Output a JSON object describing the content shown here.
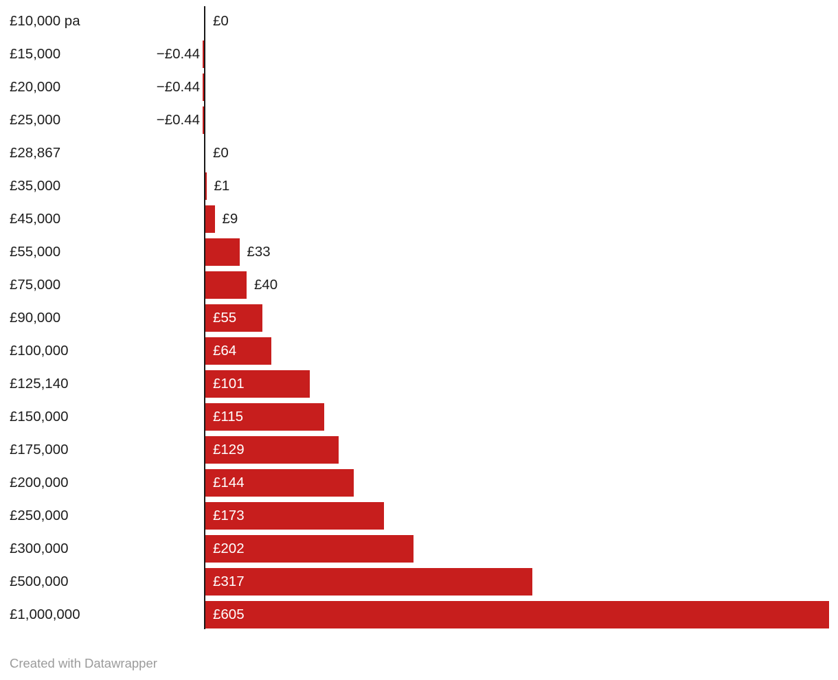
{
  "chart_data": {
    "type": "bar",
    "orientation": "horizontal",
    "title": "",
    "xlabel": "",
    "ylabel": "",
    "grid": false,
    "legend": false,
    "categories": [
      "£10,000 pa",
      "£15,000",
      "£20,000",
      "£25,000",
      "£28,867",
      "£35,000",
      "£45,000",
      "£55,000",
      "£75,000",
      "£90,000",
      "£100,000",
      "£125,140",
      "£150,000",
      "£175,000",
      "£200,000",
      "£250,000",
      "£300,000",
      "£500,000",
      "£1,000,000"
    ],
    "values": [
      0,
      -0.44,
      -0.44,
      -0.44,
      0,
      1,
      9,
      33,
      40,
      55,
      64,
      101,
      115,
      129,
      144,
      173,
      202,
      317,
      605
    ],
    "value_labels": [
      "£0",
      "−£0.44",
      "−£0.44",
      "−£0.44",
      "£0",
      "£1",
      "£9",
      "£33",
      "£40",
      "£55",
      "£64",
      "£101",
      "£115",
      "£129",
      "£144",
      "£173",
      "£202",
      "£317",
      "£605"
    ],
    "xlim": [
      0,
      612
    ],
    "bar_color": "#c71e1d",
    "axis_color": "#181818",
    "category_label_color": "#1d1d1d",
    "outside_value_label_color": "#1d1d1d",
    "inside_value_label_color": "#ffffff"
  },
  "footer": {
    "credit": "Created with Datawrapper"
  }
}
